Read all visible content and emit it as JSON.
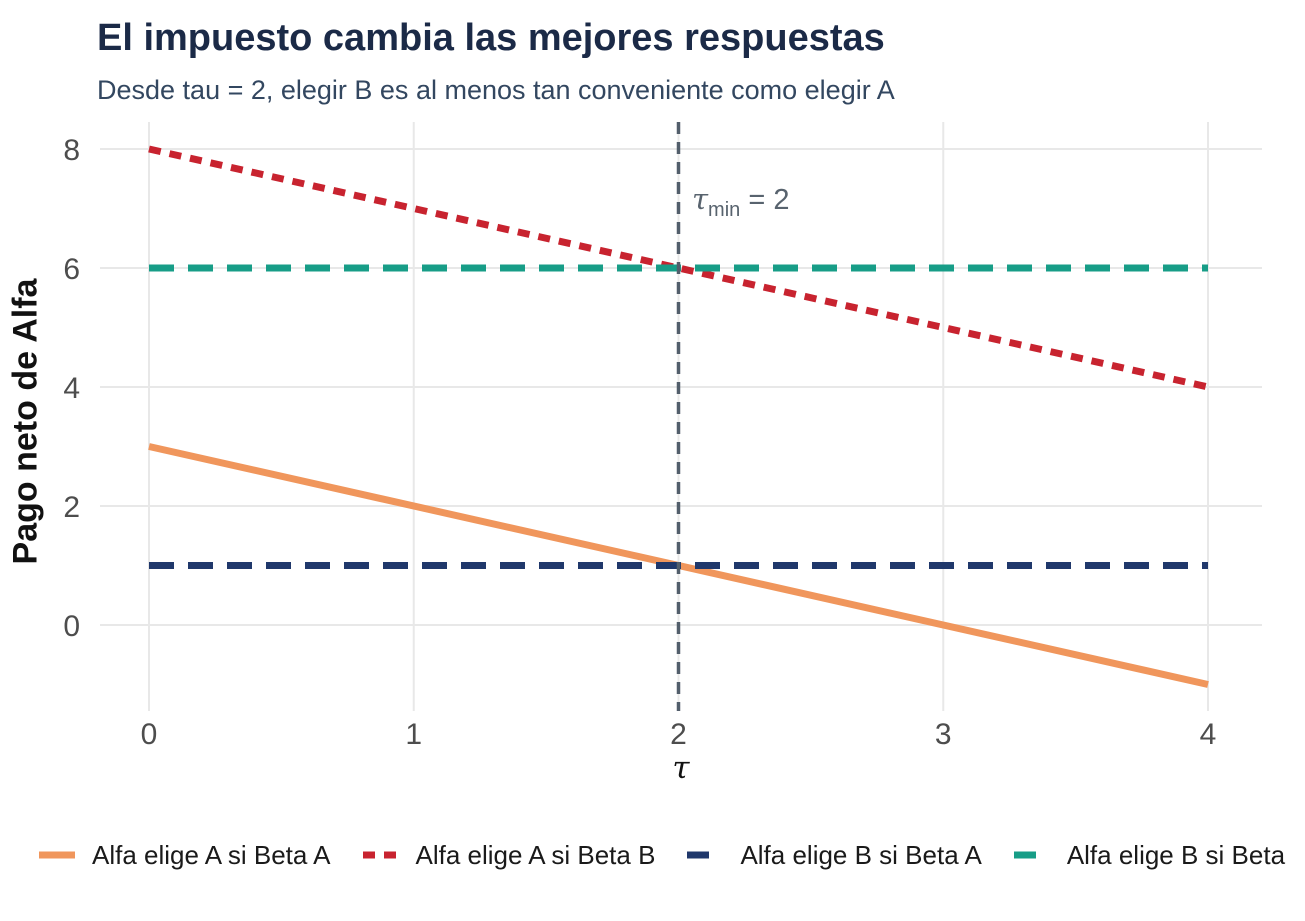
{
  "title": "El impuesto cambia las mejores respuestas",
  "subtitle": "Desde tau = 2, elegir B es al menos tan conveniente como elegir A",
  "colors": {
    "title": "#1b2a47",
    "subtitle": "#334760",
    "grid": "#e8e8e8",
    "tick_text": "#4d4d4d",
    "annotation": "#58636e",
    "vline": "#525e6b",
    "series_orange": "#f0965c",
    "series_red": "#c8232f",
    "series_navy": "#20386b",
    "series_teal": "#179d87"
  },
  "chart_data": {
    "type": "line",
    "title": "El impuesto cambia las mejores respuestas",
    "subtitle": "Desde tau = 2, elegir B es al menos tan conveniente como elegir A",
    "xlabel": "τ",
    "ylabel": "Pago neto de Alfa",
    "xlim": [
      0,
      4
    ],
    "ylim": [
      -1,
      8
    ],
    "xticks": [
      "0",
      "1",
      "2",
      "3",
      "4"
    ],
    "yticks": [
      "0",
      "2",
      "4",
      "6",
      "8"
    ],
    "grid": "major-only",
    "legend_position": "bottom",
    "series": [
      {
        "name": "Alfa elige A si Beta A",
        "color": "#f0965c",
        "linetype": "solid",
        "points": [
          [
            0,
            3
          ],
          [
            4,
            -1
          ]
        ]
      },
      {
        "name": "Alfa elige A si Beta B",
        "color": "#c8232f",
        "linetype": "dotted",
        "points": [
          [
            0,
            8
          ],
          [
            4,
            4
          ]
        ]
      },
      {
        "name": "Alfa elige B si Beta A",
        "color": "#20386b",
        "linetype": "dashed",
        "points": [
          [
            0,
            1
          ],
          [
            4,
            1
          ]
        ]
      },
      {
        "name": "Alfa elige B si Beta",
        "color": "#179d87",
        "linetype": "dashed",
        "points": [
          [
            0,
            6
          ],
          [
            4,
            6
          ]
        ]
      }
    ],
    "vline": {
      "x": 2,
      "color": "#525e6b",
      "linetype": "dashed",
      "label_tau": "τ",
      "label_sub": "min",
      "label_rest": " = 2"
    }
  }
}
